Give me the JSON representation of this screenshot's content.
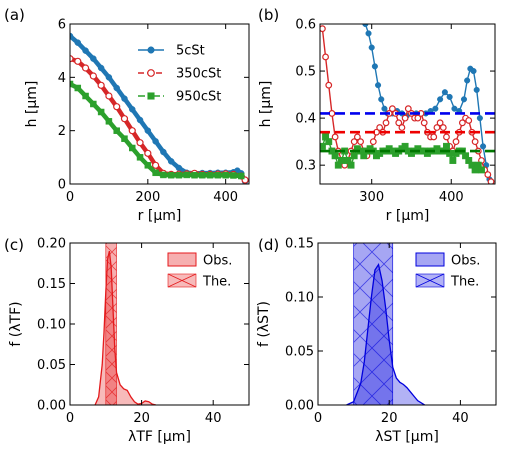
{
  "figure": {
    "panels": [
      {
        "id": "a",
        "label": "(a)"
      },
      {
        "id": "b",
        "label": "(b)"
      },
      {
        "id": "c",
        "label": "(c)"
      },
      {
        "id": "d",
        "label": "(d)"
      }
    ]
  },
  "chart_data": [
    {
      "id": "a",
      "type": "line",
      "xlabel": "r [µm]",
      "ylabel": "h [µm]",
      "xlim": [
        0,
        460
      ],
      "ylim": [
        0,
        6
      ],
      "xticks": [
        0,
        200,
        400
      ],
      "yticks": [
        0,
        2,
        4,
        6
      ],
      "legend": "top-right",
      "series": [
        {
          "name": "5cSt",
          "color": "#1f77b4",
          "linestyle": "solid",
          "marker": "circle",
          "x": [
            0,
            20,
            40,
            60,
            80,
            100,
            120,
            140,
            160,
            180,
            200,
            220,
            240,
            260,
            280,
            300,
            320,
            340,
            360,
            380,
            400,
            420,
            430,
            440,
            450
          ],
          "y": [
            5.55,
            5.3,
            5.0,
            4.7,
            4.35,
            4.0,
            3.6,
            3.2,
            2.8,
            2.4,
            2.0,
            1.6,
            1.2,
            0.85,
            0.6,
            0.42,
            0.4,
            0.41,
            0.41,
            0.42,
            0.42,
            0.44,
            0.5,
            0.4,
            0.1
          ]
        },
        {
          "name": "350cSt",
          "color": "#d62728",
          "linestyle": "dashed",
          "marker": "open-circle",
          "x": [
            0,
            20,
            40,
            60,
            80,
            100,
            120,
            140,
            160,
            180,
            200,
            220,
            240,
            260,
            280,
            300,
            320,
            340,
            360,
            380,
            400,
            420,
            440,
            450
          ],
          "y": [
            4.7,
            4.6,
            4.35,
            4.05,
            3.7,
            3.3,
            2.9,
            2.45,
            2.0,
            1.55,
            1.15,
            0.7,
            0.4,
            0.36,
            0.37,
            0.38,
            0.4,
            0.36,
            0.36,
            0.37,
            0.38,
            0.36,
            0.3,
            0.15
          ]
        },
        {
          "name": "950cSt",
          "color": "#2ca02c",
          "linestyle": "dashdot",
          "marker": "square",
          "x": [
            0,
            20,
            40,
            60,
            80,
            100,
            120,
            140,
            160,
            180,
            200,
            220,
            240,
            260,
            280,
            300,
            320,
            340,
            360,
            380,
            400,
            420,
            440
          ],
          "y": [
            3.75,
            3.6,
            3.3,
            3.0,
            2.7,
            2.35,
            2.0,
            1.7,
            1.35,
            1.0,
            0.7,
            0.42,
            0.34,
            0.33,
            0.33,
            0.34,
            0.33,
            0.33,
            0.33,
            0.33,
            0.33,
            0.32,
            0.3
          ]
        }
      ]
    },
    {
      "id": "b",
      "type": "line",
      "xlabel": "r [µm]",
      "ylabel": "h [µm]",
      "xlim": [
        235,
        455
      ],
      "ylim": [
        0.26,
        0.6
      ],
      "xticks": [
        300,
        400
      ],
      "yticks": [
        0.3,
        0.4,
        0.5,
        0.6
      ],
      "series": [
        {
          "color": "#1f77b4",
          "marker": "circle",
          "x": [
            292,
            296,
            300,
            304,
            308,
            312,
            316,
            320,
            326,
            332,
            338,
            344,
            350,
            356,
            362,
            368,
            374,
            380,
            386,
            392,
            398,
            404,
            410,
            416,
            420,
            424,
            428,
            432,
            436,
            440,
            444,
            448,
            452
          ],
          "y": [
            0.6,
            0.58,
            0.55,
            0.51,
            0.47,
            0.44,
            0.42,
            0.41,
            0.41,
            0.415,
            0.41,
            0.405,
            0.41,
            0.41,
            0.41,
            0.41,
            0.415,
            0.42,
            0.44,
            0.455,
            0.445,
            0.42,
            0.415,
            0.44,
            0.48,
            0.505,
            0.5,
            0.46,
            0.4,
            0.34,
            0.3,
            0.27,
            0.25
          ]
        },
        {
          "color": "#d62728",
          "marker": "open-circle",
          "x": [
            238,
            242,
            246,
            250,
            254,
            258,
            262,
            266,
            270,
            274,
            278,
            282,
            286,
            290,
            294,
            298,
            302,
            306,
            310,
            314,
            318,
            322,
            326,
            330,
            334,
            338,
            342,
            346,
            350,
            354,
            358,
            362,
            366,
            370,
            374,
            378,
            382,
            386,
            390,
            394,
            398,
            402,
            406,
            410,
            414,
            418,
            422,
            426,
            430,
            434,
            438,
            442,
            446,
            450
          ],
          "y": [
            0.59,
            0.53,
            0.47,
            0.41,
            0.36,
            0.33,
            0.31,
            0.3,
            0.31,
            0.33,
            0.35,
            0.36,
            0.35,
            0.33,
            0.32,
            0.33,
            0.35,
            0.37,
            0.38,
            0.37,
            0.39,
            0.41,
            0.42,
            0.41,
            0.39,
            0.38,
            0.4,
            0.42,
            0.41,
            0.4,
            0.4,
            0.41,
            0.39,
            0.37,
            0.36,
            0.36,
            0.38,
            0.39,
            0.38,
            0.36,
            0.34,
            0.33,
            0.35,
            0.37,
            0.39,
            0.4,
            0.395,
            0.37,
            0.35,
            0.33,
            0.31,
            0.29,
            0.28,
            0.265
          ]
        },
        {
          "color": "#2ca02c",
          "marker": "square",
          "x": [
            238,
            242,
            246,
            250,
            254,
            258,
            262,
            266,
            270,
            274,
            278,
            282,
            286,
            290,
            294,
            298,
            302,
            306,
            310,
            314,
            318,
            322,
            326,
            330,
            334,
            338,
            342,
            346,
            350,
            354,
            358,
            362,
            366,
            370,
            374,
            378,
            382,
            386,
            390,
            394,
            398,
            402,
            406,
            410,
            414,
            418,
            422,
            426,
            430,
            434,
            438
          ],
          "y": [
            0.34,
            0.36,
            0.35,
            0.33,
            0.32,
            0.3,
            0.31,
            0.33,
            0.31,
            0.3,
            0.32,
            0.335,
            0.33,
            0.32,
            0.33,
            0.335,
            0.33,
            0.32,
            0.325,
            0.33,
            0.33,
            0.335,
            0.33,
            0.325,
            0.33,
            0.335,
            0.34,
            0.33,
            0.325,
            0.33,
            0.335,
            0.33,
            0.33,
            0.325,
            0.33,
            0.33,
            0.335,
            0.33,
            0.33,
            0.34,
            0.325,
            0.31,
            0.325,
            0.33,
            0.33,
            0.32,
            0.31,
            0.3,
            0.29,
            0.3,
            0.29
          ]
        }
      ],
      "hlines": [
        {
          "y": 0.41,
          "color": "#0000ee"
        },
        {
          "y": 0.37,
          "color": "#ee0000"
        },
        {
          "y": 0.33,
          "color": "#007700"
        }
      ]
    },
    {
      "id": "c",
      "type": "area",
      "xlabel": "λTF [µm]",
      "ylabel": "f (λTF)",
      "xlim": [
        0,
        50
      ],
      "ylim": [
        0,
        0.2
      ],
      "xticks": [
        0,
        20,
        40
      ],
      "yticks": [
        0.0,
        0.05,
        0.1,
        0.15,
        0.2
      ],
      "legend": "top-right",
      "obs": {
        "name": "Obs.",
        "color": "#e41a1c",
        "x": [
          7,
          8,
          9,
          9.5,
          10,
          10.5,
          11,
          11.5,
          12,
          12.5,
          13,
          14,
          15,
          16,
          17,
          18,
          19,
          20,
          21,
          22,
          23,
          24
        ],
        "y": [
          0,
          0.01,
          0.05,
          0.09,
          0.14,
          0.18,
          0.19,
          0.17,
          0.12,
          0.07,
          0.04,
          0.025,
          0.02,
          0.018,
          0.01,
          0.004,
          0.001,
          0.002,
          0.005,
          0.004,
          0.001,
          0
        ]
      },
      "theory": {
        "name": "The.",
        "range": [
          10,
          13
        ]
      }
    },
    {
      "id": "d",
      "type": "area",
      "xlabel": "λST [µm]",
      "ylabel": "f (λST)",
      "xlim": [
        0,
        50
      ],
      "ylim": [
        0,
        0.15
      ],
      "xticks": [
        0,
        20,
        40
      ],
      "yticks": [
        0.0,
        0.05,
        0.1,
        0.15
      ],
      "legend": "top-right",
      "obs": {
        "name": "Obs.",
        "color": "#0000dd",
        "x": [
          8,
          10,
          12,
          13,
          14,
          15,
          16,
          17,
          18,
          19,
          20,
          21,
          22,
          23,
          24,
          25,
          26,
          27,
          28,
          30
        ],
        "y": [
          0,
          0.003,
          0.02,
          0.04,
          0.07,
          0.1,
          0.125,
          0.13,
          0.115,
          0.09,
          0.06,
          0.035,
          0.025,
          0.021,
          0.019,
          0.016,
          0.012,
          0.008,
          0.004,
          0
        ]
      },
      "theory": {
        "name": "The.",
        "range": [
          10,
          21
        ]
      }
    }
  ]
}
